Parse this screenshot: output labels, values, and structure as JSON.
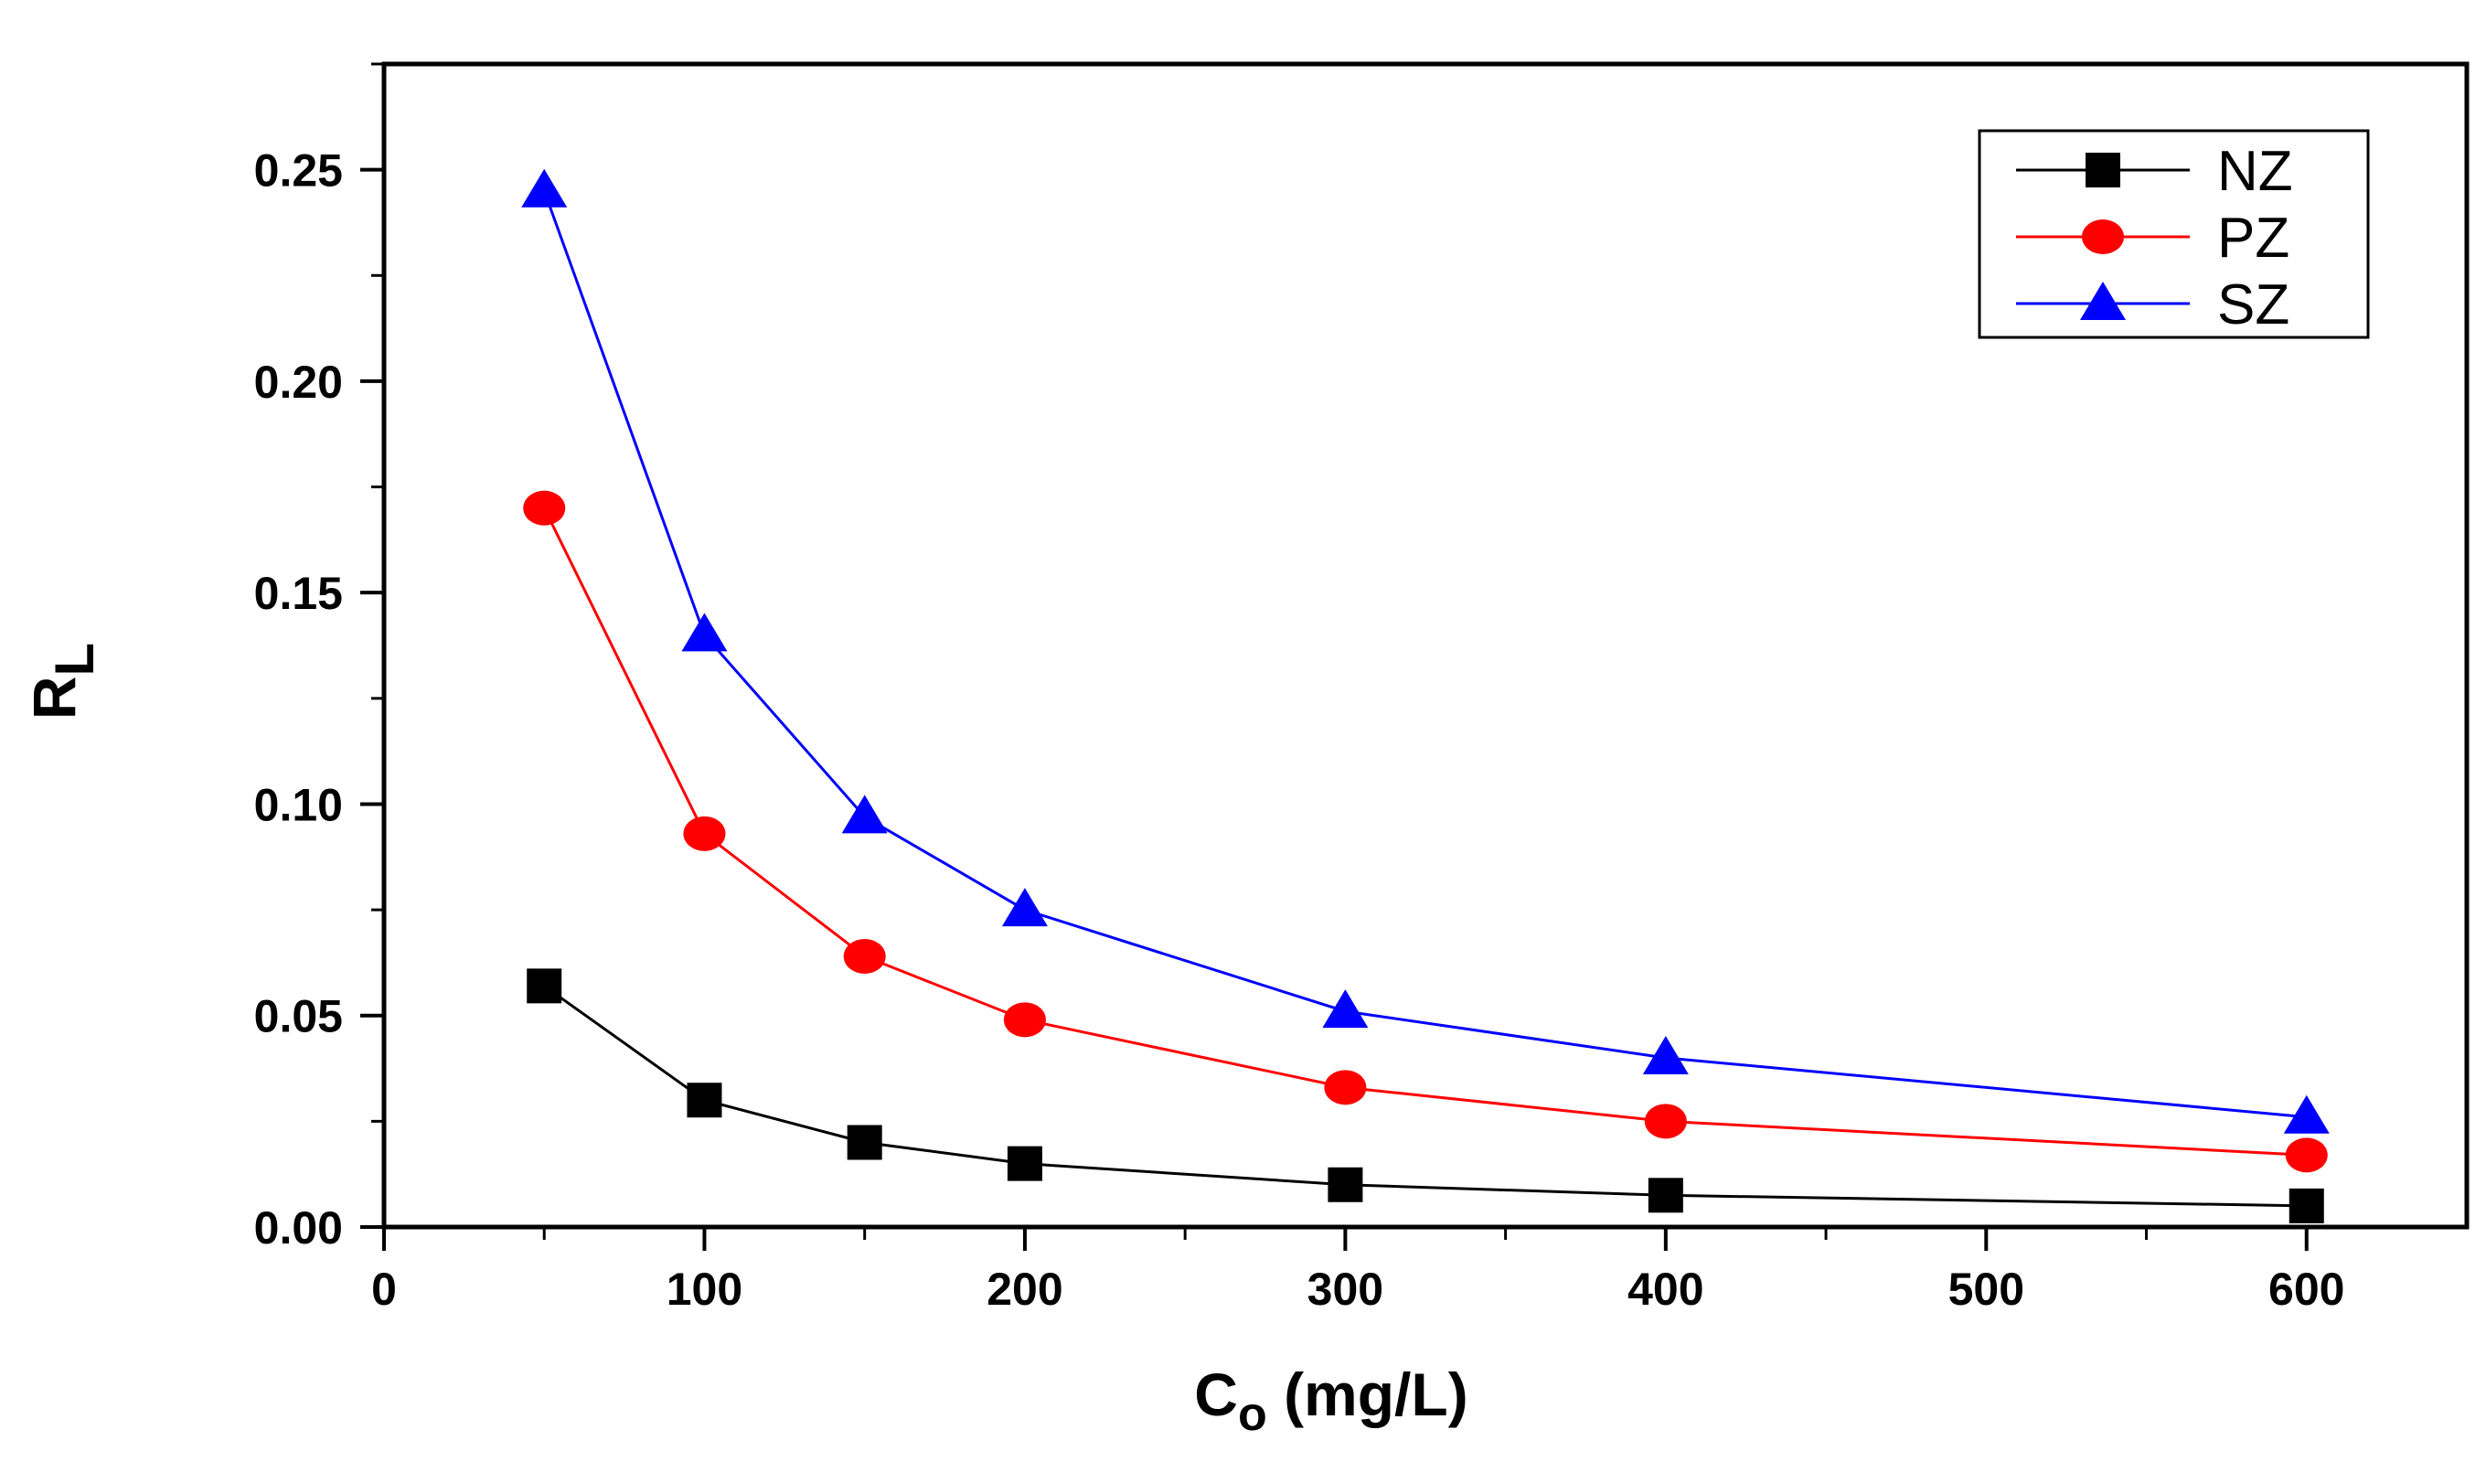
{
  "chart_data": {
    "type": "line",
    "title": "",
    "xlabel": {
      "main": "C",
      "sub": "o",
      "unit": " (mg/L)"
    },
    "ylabel": {
      "main": "R",
      "sub": "L"
    },
    "xlim": [
      0,
      650
    ],
    "ylim": [
      0,
      0.275
    ],
    "x_ticks": [
      0,
      100,
      200,
      300,
      400,
      500,
      600
    ],
    "x_tick_labels": [
      "0",
      "100",
      "200",
      "300",
      "400",
      "500",
      "600"
    ],
    "y_ticks": [
      0,
      0.05,
      0.1,
      0.15,
      0.2,
      0.25
    ],
    "y_tick_labels": [
      "0.00",
      "0.05",
      "0.10",
      "0.15",
      "0.20",
      "0.25"
    ],
    "grid": false,
    "legend_position": "top-right",
    "x": [
      50,
      100,
      150,
      200,
      300,
      400,
      600
    ],
    "series": [
      {
        "name": "NZ",
        "color": "#000000",
        "marker": "square",
        "values": [
          0.057,
          0.03,
          0.02,
          0.015,
          0.01,
          0.0075,
          0.005
        ]
      },
      {
        "name": "PZ",
        "color": "#ff0000",
        "marker": "circle",
        "values": [
          0.17,
          0.093,
          0.064,
          0.049,
          0.033,
          0.025,
          0.017
        ]
      },
      {
        "name": "SZ",
        "color": "#0000ff",
        "marker": "triangle",
        "values": [
          0.245,
          0.14,
          0.097,
          0.075,
          0.051,
          0.04,
          0.026
        ]
      }
    ]
  }
}
